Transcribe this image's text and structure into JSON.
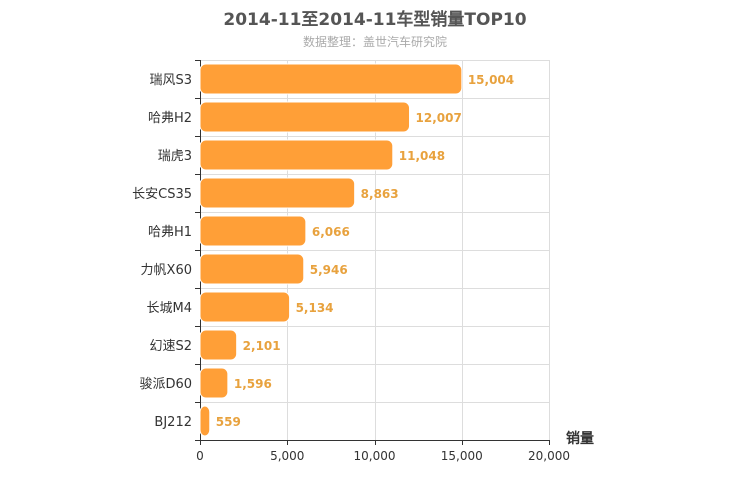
{
  "title": "2014-11至2014-11车型销量TOP10",
  "subtitle": "数据整理：盖世汽车研究院",
  "colors": {
    "bar": "#FF9F37",
    "bar_stroke": "#FFFFFF",
    "value_label": "#E8A23E",
    "grid": "#DDDDDD",
    "axis": "#333333",
    "text": "#333333"
  },
  "chart_data": {
    "type": "bar",
    "orientation": "horizontal",
    "title": "2014-11至2014-11车型销量TOP10",
    "subtitle": "数据整理：盖世汽车研究院",
    "categories": [
      "瑞风S3",
      "哈弗H2",
      "瑞虎3",
      "长安CS35",
      "哈弗H1",
      "力帆X60",
      "长城M4",
      "幻速S2",
      "骏派D60",
      "BJ212"
    ],
    "values": [
      15004,
      12007,
      11048,
      8863,
      6066,
      5946,
      5134,
      2101,
      1596,
      559
    ],
    "value_labels": [
      "15,004",
      "12,007",
      "11,048",
      "8,863",
      "6,066",
      "5,946",
      "5,134",
      "2,101",
      "1,596",
      "559"
    ],
    "xlabel": "销量",
    "ylabel": "",
    "xlim": [
      0,
      20000
    ],
    "xticks": [
      0,
      5000,
      10000,
      15000,
      20000
    ],
    "xtick_labels": [
      "0",
      "5,000",
      "10,000",
      "15,000",
      "20,000"
    ],
    "grid": true,
    "legend": "none"
  }
}
